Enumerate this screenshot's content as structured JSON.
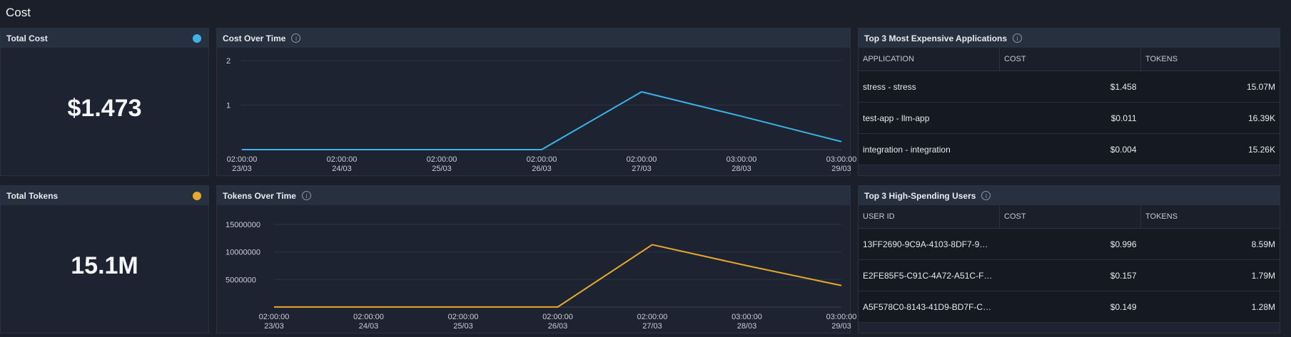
{
  "page": {
    "title": "Cost"
  },
  "total_cost": {
    "title": "Total Cost",
    "value": "$1.473",
    "dot_color": "#3bb3ea"
  },
  "total_tokens": {
    "title": "Total Tokens",
    "value": "15.1M",
    "dot_color": "#e9a92a"
  },
  "cost_chart": {
    "title": "Cost Over Time",
    "info": "i"
  },
  "tokens_chart": {
    "title": "Tokens Over Time",
    "info": "i"
  },
  "top_apps": {
    "title": "Top 3 Most Expensive Applications",
    "info": "i",
    "columns": [
      "APPLICATION",
      "COST",
      "TOKENS"
    ],
    "rows": [
      [
        "stress - stress",
        "$1.458",
        "15.07M"
      ],
      [
        "test-app - llm-app",
        "$0.011",
        "16.39K"
      ],
      [
        "integration - integration",
        "$0.004",
        "15.26K"
      ]
    ]
  },
  "top_users": {
    "title": "Top 3 High-Spending Users",
    "info": "i",
    "columns": [
      "USER ID",
      "COST",
      "TOKENS"
    ],
    "rows": [
      [
        "13FF2690-9C9A-4103-8DF7-9…",
        "$0.996",
        "8.59M"
      ],
      [
        "E2FE85F5-C91C-4A72-A51C-F…",
        "$0.157",
        "1.79M"
      ],
      [
        "A5F578C0-8143-41D9-BD7F-C…",
        "$0.149",
        "1.28M"
      ]
    ]
  },
  "chart_data": [
    {
      "type": "line",
      "title": "Cost Over Time",
      "color": "#3bb3ea",
      "x": [
        "02:00:00 23/03",
        "02:00:00 24/03",
        "02:00:00 25/03",
        "02:00:00 26/03",
        "02:00:00 27/03",
        "03:00:00 28/03",
        "03:00:00 29/03"
      ],
      "x_ticks": [
        [
          "02:00:00",
          "23/03"
        ],
        [
          "02:00:00",
          "24/03"
        ],
        [
          "02:00:00",
          "25/03"
        ],
        [
          "02:00:00",
          "26/03"
        ],
        [
          "02:00:00",
          "27/03"
        ],
        [
          "03:00:00",
          "28/03"
        ],
        [
          "03:00:00",
          "29/03"
        ]
      ],
      "values": [
        0.001,
        0.001,
        0.001,
        0.001,
        1.3,
        0.75,
        0.18
      ],
      "y_ticks": [
        "1",
        "2"
      ],
      "ylim": [
        0,
        2.1
      ],
      "grid": true
    },
    {
      "type": "line",
      "title": "Tokens Over Time",
      "color": "#e9a92a",
      "x": [
        "02:00:00 23/03",
        "02:00:00 24/03",
        "02:00:00 25/03",
        "02:00:00 26/03",
        "02:00:00 27/03",
        "03:00:00 28/03",
        "03:00:00 29/03"
      ],
      "x_ticks": [
        [
          "02:00:00",
          "23/03"
        ],
        [
          "02:00:00",
          "24/03"
        ],
        [
          "02:00:00",
          "25/03"
        ],
        [
          "02:00:00",
          "26/03"
        ],
        [
          "02:00:00",
          "27/03"
        ],
        [
          "03:00:00",
          "28/03"
        ],
        [
          "03:00:00",
          "29/03"
        ]
      ],
      "values": [
        15000,
        15000,
        15000,
        15000,
        11300000,
        7500000,
        3900000
      ],
      "y_ticks": [
        "5000000",
        "10000000",
        "15000000"
      ],
      "ylim": [
        0,
        16000000
      ],
      "grid": true
    }
  ]
}
